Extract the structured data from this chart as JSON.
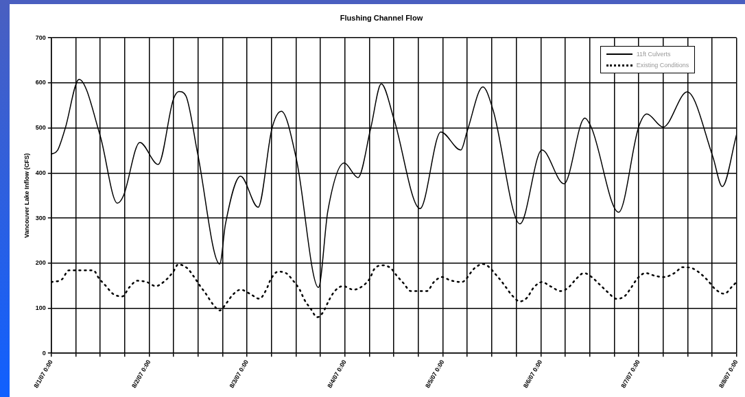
{
  "chart_data": {
    "type": "line",
    "title": "Flushing Channel Flow",
    "ylabel": "Vancouver Lake Inflow (CFS)",
    "xlim": [
      "--08-01T00:00",
      "--08-08T00:00"
    ],
    "ylim": [
      0,
      700
    ],
    "yticks": [
      0,
      100,
      200,
      300,
      400,
      500,
      600,
      700
    ],
    "xticks": [
      {
        "value": "--08-01T00:00",
        "label": "8/1/07 0:00"
      },
      {
        "value": "--08-01T06:00",
        "label": null
      },
      {
        "value": "--08-01T12:00",
        "label": null
      },
      {
        "value": "--08-01T18:00",
        "label": null
      },
      {
        "value": "--08-02T00:00",
        "label": "8/2/07 0:00"
      },
      {
        "value": "--08-02T06:00",
        "label": null
      },
      {
        "value": "--08-02T12:00",
        "label": null
      },
      {
        "value": "--08-02T18:00",
        "label": null
      },
      {
        "value": "--08-03T00:00",
        "label": "8/3/07 0:00"
      },
      {
        "value": "--08-03T06:00",
        "label": null
      },
      {
        "value": "--08-03T12:00",
        "label": null
      },
      {
        "value": "--08-03T18:00",
        "label": null
      },
      {
        "value": "--08-04T00:00",
        "label": "8/4/07 0:00"
      },
      {
        "value": "--08-04T06:00",
        "label": null
      },
      {
        "value": "--08-04T12:00",
        "label": null
      },
      {
        "value": "--08-04T18:00",
        "label": null
      },
      {
        "value": "--08-05T00:00",
        "label": "8/5/07 0:00"
      },
      {
        "value": "--08-05T06:00",
        "label": null
      },
      {
        "value": "--08-05T12:00",
        "label": null
      },
      {
        "value": "--08-05T18:00",
        "label": null
      },
      {
        "value": "--08-06T00:00",
        "label": "8/6/07 0:00"
      },
      {
        "value": "--08-06T06:00",
        "label": null
      },
      {
        "value": "--08-06T12:00",
        "label": null
      },
      {
        "value": "--08-06T18:00",
        "label": null
      },
      {
        "value": "--08-07T00:00",
        "label": "8/7/07 0:00"
      },
      {
        "value": "--08-07T06:00",
        "label": null
      },
      {
        "value": "--08-07T12:00",
        "label": null
      },
      {
        "value": "--08-07T18:00",
        "label": null
      },
      {
        "value": "--08-08T00:00",
        "label": "8/8/07 0:00"
      }
    ],
    "grid": true,
    "legend": "top right",
    "marker": "none",
    "series": [
      {
        "name": "11ft Culverts",
        "color": "#000000",
        "line_style": "solid",
        "x": [
          "--08-01T00:00",
          "--08-01T01:30",
          "--08-01T03:24",
          "--08-01T06:48",
          "--08-01T12:00",
          "--08-01T16:12",
          "--08-01T17:42",
          "--08-01T21:42",
          "--08-02T02:12",
          "--08-02T05:54",
          "--08-02T07:18",
          "--08-02T09:00",
          "--08-02T11:54",
          "--08-02T17:18",
          "--08-02T18:42",
          "--08-02T22:24",
          "--08-03T02:42",
          "--08-03T06:06",
          "--08-03T08:24",
          "--08-03T12:06",
          "--08-03T17:30",
          "--08-03T19:48",
          "--08-03T23:48",
          "--08-04T03:12",
          "--08-04T06:18",
          "--08-04T08:54",
          "--08-04T12:00",
          "--08-04T18:24",
          "--08-04T23:30",
          "--08-05T04:24",
          "--08-05T06:00",
          "--08-05T09:48",
          "--08-05T12:18",
          "--08-05T18:54",
          "--08-06T00:18",
          "--08-06T05:42",
          "--08-06T10:48",
          "--08-06T12:30",
          "--08-06T19:06",
          "--08-07T00:00",
          "--08-07T02:00",
          "--08-07T06:00",
          "--08-07T11:54",
          "--08-07T18:12",
          "--08-07T20:30",
          "--08-08T00:00"
        ],
        "values": [
          442,
          450,
          499,
          608,
          482,
          333,
          350,
          468,
          419,
          563,
          581,
          571,
          442,
          198,
          287,
          393,
          324,
          499,
          537,
          430,
          146,
          316,
          422,
          390,
          499,
          598,
          520,
          321,
          491,
          451,
          494,
          591,
          540,
          287,
          451,
          376,
          522,
          499,
          313,
          502,
          531,
          502,
          580,
          436,
          370,
          485
        ]
      },
      {
        "name": "Existing Conditions",
        "color": "#000000",
        "line_style": "dotted",
        "x": [
          "--08-01T00:00",
          "--08-01T02:36",
          "--08-01T04:18",
          "--08-01T10:18",
          "--08-01T11:42",
          "--08-01T13:24",
          "--08-01T15:06",
          "--08-01T17:24",
          "--08-01T19:06",
          "--08-01T21:06",
          "--08-01T23:24",
          "--08-02T01:36",
          "--08-02T03:54",
          "--08-02T05:54",
          "--08-02T07:06",
          "--08-02T09:18",
          "--08-02T10:48",
          "--08-02T12:30",
          "--08-02T13:54",
          "--08-02T15:36",
          "--08-02T17:18",
          "--08-02T19:00",
          "--08-02T20:24",
          "--08-02T22:24",
          "--08-03T00:42",
          "--08-03T03:00",
          "--08-03T04:42",
          "--08-03T05:48",
          "--08-03T07:36",
          "--08-03T09:30",
          "--08-03T11:18",
          "--08-03T12:54",
          "--08-03T14:06",
          "--08-03T15:30",
          "--08-03T17:12",
          "--08-03T18:42",
          "--08-03T20:06",
          "--08-03T21:30",
          "--08-03T23:30",
          "--08-04T02:06",
          "--08-04T04:18",
          "--08-04T06:06",
          "--08-04T07:12",
          "--08-04T09:12",
          "--08-04T11:12",
          "--08-04T12:42",
          "--08-04T14:24",
          "--08-04T16:06",
          "--08-04T20:06",
          "--08-04T21:48",
          "--08-04T23:48",
          "--08-05T01:48",
          "--08-05T04:36",
          "--08-05T07:48",
          "--08-05T09:48",
          "--08-05T13:48",
          "--08-05T15:30",
          "--08-05T16:54",
          "--08-05T18:54",
          "--08-05T20:36",
          "--08-05T22:18",
          "--08-06T00:18",
          "--08-06T02:18",
          "--08-06T04:54",
          "--08-06T06:48",
          "--08-06T08:36",
          "--08-06T10:36",
          "--08-06T12:30",
          "--08-06T14:30",
          "--08-06T16:30",
          "--08-06T18:30",
          "--08-06T20:30",
          "--08-06T22:12",
          "--08-06T23:42",
          "--08-07T01:42",
          "--08-07T03:54",
          "--08-07T06:12",
          "--08-07T08:48",
          "--08-07T10:48",
          "--08-07T13:00",
          "--08-07T15:00",
          "--08-07T17:00",
          "--08-07T18:42",
          "--08-07T21:00",
          "--08-07T23:00",
          "--08-08T00:00"
        ],
        "values": [
          158,
          164,
          184,
          184,
          166,
          149,
          132,
          126,
          146,
          161,
          158,
          149,
          161,
          181,
          197,
          189,
          172,
          149,
          132,
          109,
          95,
          112,
          129,
          141,
          132,
          121,
          141,
          164,
          181,
          178,
          161,
          141,
          118,
          100,
          80,
          92,
          118,
          138,
          149,
          141,
          149,
          166,
          187,
          195,
          189,
          172,
          155,
          138,
          138,
          158,
          169,
          162,
          158,
          189,
          198,
          166,
          146,
          129,
          115,
          123,
          146,
          158,
          149,
          138,
          146,
          164,
          178,
          169,
          152,
          135,
          121,
          126,
          146,
          166,
          178,
          172,
          169,
          178,
          191,
          189,
          178,
          161,
          143,
          132,
          149,
          158
        ]
      }
    ]
  }
}
